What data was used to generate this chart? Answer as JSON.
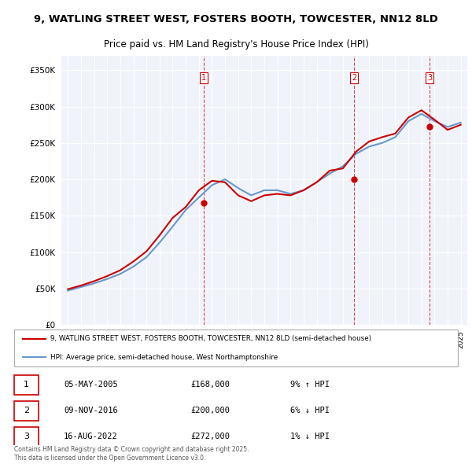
{
  "title": "9, WATLING STREET WEST, FOSTERS BOOTH, TOWCESTER, NN12 8LD",
  "subtitle": "Price paid vs. HM Land Registry's House Price Index (HPI)",
  "ylabel_ticks": [
    "£0",
    "£50K",
    "£100K",
    "£150K",
    "£200K",
    "£250K",
    "£300K",
    "£350K"
  ],
  "ytick_values": [
    0,
    50000,
    100000,
    150000,
    200000,
    250000,
    300000,
    350000
  ],
  "ylim": [
    0,
    370000
  ],
  "xlim_start": 1995,
  "xlim_end": 2025.5,
  "sale_dates": [
    2005.35,
    2016.85,
    2022.62
  ],
  "sale_prices": [
    168000,
    200000,
    272000
  ],
  "sale_labels": [
    "1",
    "2",
    "3"
  ],
  "sale_info": [
    {
      "num": "1",
      "date": "05-MAY-2005",
      "price": "£168,000",
      "pct": "9% ↑ HPI"
    },
    {
      "num": "2",
      "date": "09-NOV-2016",
      "price": "£200,000",
      "pct": "6% ↓ HPI"
    },
    {
      "num": "3",
      "date": "16-AUG-2022",
      "price": "£272,000",
      "pct": "1% ↓ HPI"
    }
  ],
  "legend_line1": "9, WATLING STREET WEST, FOSTERS BOOTH, TOWCESTER, NN12 8LD (semi-detached house)",
  "legend_line2": "HPI: Average price, semi-detached house, West Northamptonshire",
  "footer": "Contains HM Land Registry data © Crown copyright and database right 2025.\nThis data is licensed under the Open Government Licence v3.0.",
  "line_color_price": "#cc0000",
  "line_color_hpi": "#6699cc",
  "dashed_line_color": "#cc0000",
  "background_color": "#ffffff",
  "plot_bg_color": "#f0f4fa",
  "grid_color": "#ffffff",
  "hpi_years": [
    1995,
    1996,
    1997,
    1998,
    1999,
    2000,
    2001,
    2002,
    2003,
    2004,
    2005,
    2006,
    2007,
    2008,
    2009,
    2010,
    2011,
    2012,
    2013,
    2014,
    2015,
    2016,
    2017,
    2018,
    2019,
    2020,
    2021,
    2022,
    2023,
    2024,
    2025
  ],
  "hpi_values": [
    47000,
    52000,
    57000,
    63000,
    70000,
    80000,
    93000,
    113000,
    135000,
    158000,
    175000,
    192000,
    200000,
    188000,
    178000,
    185000,
    185000,
    180000,
    185000,
    196000,
    208000,
    218000,
    235000,
    245000,
    250000,
    258000,
    280000,
    290000,
    280000,
    272000,
    278000
  ],
  "price_years": [
    1995,
    1996,
    1997,
    1998,
    1999,
    2000,
    2001,
    2002,
    2003,
    2004,
    2005,
    2006,
    2007,
    2008,
    2009,
    2010,
    2011,
    2012,
    2013,
    2014,
    2015,
    2016,
    2017,
    2018,
    2019,
    2020,
    2021,
    2022,
    2023,
    2024,
    2025
  ],
  "price_values": [
    49000,
    54000,
    60000,
    67000,
    75000,
    87000,
    101000,
    123000,
    147000,
    162000,
    185000,
    198000,
    196000,
    178000,
    170000,
    178000,
    180000,
    178000,
    185000,
    196000,
    212000,
    215000,
    238000,
    252000,
    258000,
    263000,
    285000,
    295000,
    282000,
    268000,
    275000
  ]
}
